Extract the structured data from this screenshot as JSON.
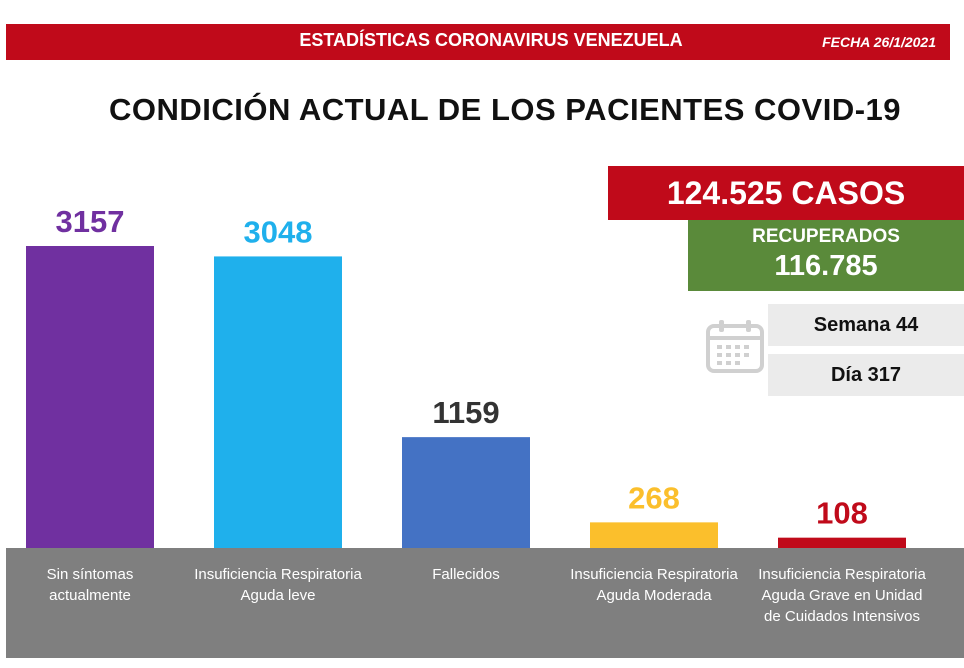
{
  "header": {
    "title": "ESTADÍSTICAS CORONAVIRUS VENEZUELA",
    "date": "FECHA 26/1/2021",
    "band_color": "#c00a1a"
  },
  "main_title": "CONDICIÓN ACTUAL DE LOS PACIENTES COVID-19",
  "summary": {
    "cases": "124.525 CASOS",
    "recovered_label": "RECUPERADOS",
    "recovered_value": "116.785",
    "week": "Semana 44",
    "day": "Día 317",
    "icon": "calendar-icon"
  },
  "chart_data": {
    "type": "bar",
    "categories": [
      "Sin síntomas actualmente",
      "Insuficiencia Respiratoria Aguda leve",
      "Fallecidos",
      "Insuficiencia Respiratoria Aguda Moderada",
      "Insuficiencia Respiratoria Aguda Grave en Unidad de Cuidados Intensivos"
    ],
    "values": [
      3157,
      3048,
      1159,
      268,
      108
    ],
    "bar_colors": [
      "#7030a0",
      "#1fb0ec",
      "#4472c4",
      "#fbbf2c",
      "#c00a1a"
    ],
    "label_colors": [
      "#7030a0",
      "#1fb0ec",
      "#333333",
      "#fbbf2c",
      "#c00a1a"
    ],
    "ylim": [
      0,
      3157
    ],
    "grid": false
  }
}
